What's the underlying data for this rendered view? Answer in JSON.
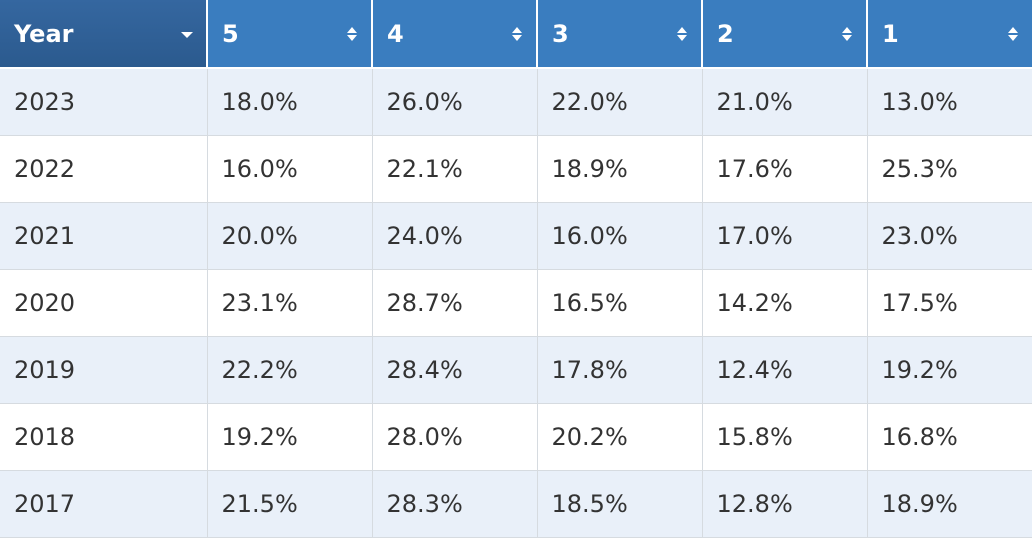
{
  "table": {
    "headers": [
      "Year",
      "5",
      "4",
      "3",
      "2",
      "1"
    ],
    "rows": [
      [
        "2023",
        "18.0%",
        "26.0%",
        "22.0%",
        "21.0%",
        "13.0%"
      ],
      [
        "2022",
        "16.0%",
        "22.1%",
        "18.9%",
        "17.6%",
        "25.3%"
      ],
      [
        "2021",
        "20.0%",
        "24.0%",
        "16.0%",
        "17.0%",
        "23.0%"
      ],
      [
        "2020",
        "23.1%",
        "28.7%",
        "16.5%",
        "14.2%",
        "17.5%"
      ],
      [
        "2019",
        "22.2%",
        "28.4%",
        "17.8%",
        "12.4%",
        "19.2%"
      ],
      [
        "2018",
        "19.2%",
        "28.0%",
        "20.2%",
        "15.8%",
        "16.8%"
      ],
      [
        "2017",
        "21.5%",
        "28.3%",
        "18.5%",
        "12.8%",
        "18.9%"
      ]
    ]
  }
}
